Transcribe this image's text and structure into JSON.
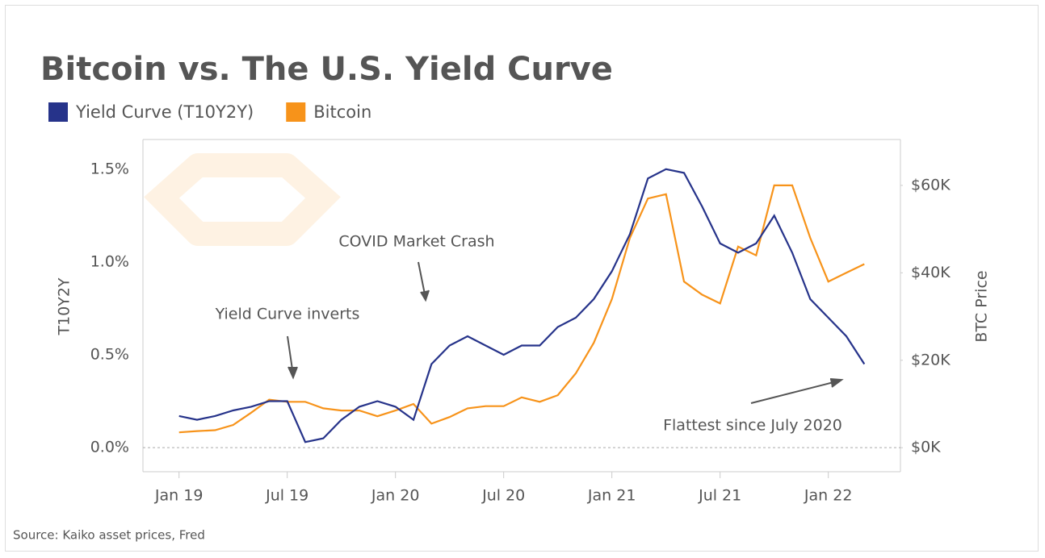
{
  "chart_data": {
    "type": "line",
    "title": "Bitcoin vs. The U.S. Yield Curve",
    "source": "Source: Kaiko asset prices, Fred",
    "y_label": "T10Y2Y",
    "y2_label": "BTC Price",
    "x": [
      "2019-01",
      "2019-02",
      "2019-03",
      "2019-04",
      "2019-05",
      "2019-06",
      "2019-07",
      "2019-08",
      "2019-09",
      "2019-10",
      "2019-11",
      "2019-12",
      "2020-01",
      "2020-02",
      "2020-03",
      "2020-04",
      "2020-05",
      "2020-06",
      "2020-07",
      "2020-08",
      "2020-09",
      "2020-10",
      "2020-11",
      "2020-12",
      "2021-01",
      "2021-02",
      "2021-03",
      "2021-04",
      "2021-05",
      "2021-06",
      "2021-07",
      "2021-08",
      "2021-09",
      "2021-10",
      "2021-11",
      "2021-12",
      "2022-01",
      "2022-02",
      "2022-03"
    ],
    "xlim": [
      "2018-11",
      "2022-05"
    ],
    "xticks": [
      {
        "value": "2019-01",
        "label": "Jan 19"
      },
      {
        "value": "2019-07",
        "label": "Jul 19"
      },
      {
        "value": "2020-01",
        "label": "Jan 20"
      },
      {
        "value": "2020-07",
        "label": "Jul 20"
      },
      {
        "value": "2021-01",
        "label": "Jan 21"
      },
      {
        "value": "2021-07",
        "label": "Jul 21"
      },
      {
        "value": "2022-01",
        "label": "Jan 22"
      }
    ],
    "ylim": [
      -0.13,
      1.66
    ],
    "yticks": [
      {
        "value": 0,
        "label": "0.0%"
      },
      {
        "value": 0.5,
        "label": "0.5%"
      },
      {
        "value": 1,
        "label": "1.0%"
      },
      {
        "value": 1.5,
        "label": "1.5%"
      }
    ],
    "y2lim": [
      -5500,
      70500
    ],
    "y2ticks": [
      {
        "value": 0,
        "label": "$0K"
      },
      {
        "value": 20000,
        "label": "$20K"
      },
      {
        "value": 40000,
        "label": "$40K"
      },
      {
        "value": 60000,
        "label": "$60K"
      }
    ],
    "series": [
      {
        "name": "Yield Curve (T10Y2Y)",
        "color": "#26338a",
        "values": [
          0.17,
          0.15,
          0.17,
          0.2,
          0.22,
          0.25,
          0.25,
          0.03,
          0.05,
          0.15,
          0.22,
          0.25,
          0.22,
          0.15,
          0.45,
          0.55,
          0.6,
          0.55,
          0.5,
          0.55,
          0.55,
          0.65,
          0.7,
          0.8,
          0.95,
          1.15,
          1.45,
          1.5,
          1.48,
          1.3,
          1.1,
          1.05,
          1.1,
          1.25,
          1.05,
          0.8,
          0.7,
          0.6,
          0.45
        ]
      },
      {
        "name": "Bitcoin",
        "color": "#f7931a",
        "axis": "y2",
        "values": [
          3500,
          3800,
          4000,
          5200,
          8000,
          11000,
          10500,
          10500,
          9000,
          8500,
          8500,
          7200,
          8500,
          10000,
          5500,
          7000,
          9000,
          9500,
          9500,
          11500,
          10500,
          12000,
          17000,
          24000,
          34000,
          48000,
          57000,
          58000,
          38000,
          35000,
          33000,
          46000,
          44000,
          60000,
          60000,
          48000,
          38000,
          40000,
          42000
        ]
      }
    ],
    "annotations": [
      "COVID Market Crash",
      "Yield Curve inverts",
      "Flattest since July 2020"
    ],
    "grid": false
  }
}
